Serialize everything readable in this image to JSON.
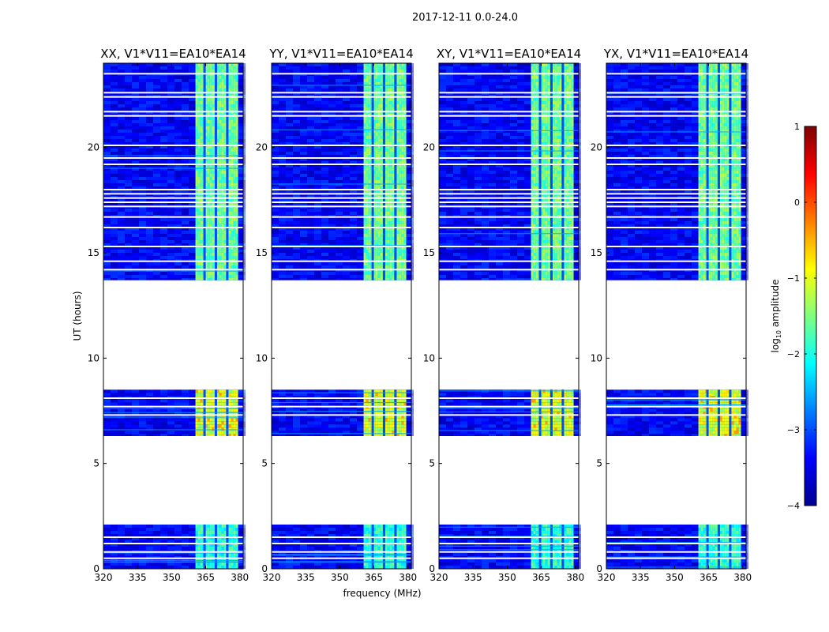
{
  "figure_title": "2017-12-11 0.0-24.0",
  "chart_data": {
    "type": "heatmap",
    "xlabel": "frequency (MHz)",
    "ylabel": "UT (hours)",
    "xlim": [
      320,
      381.5
    ],
    "ylim": [
      0,
      24
    ],
    "xticks": [
      320,
      335,
      350,
      365,
      380
    ],
    "yticks": [
      0,
      5,
      10,
      15,
      20
    ],
    "panels": [
      {
        "title": "XX, V1*V11=EA10*EA14",
        "pol": "XX"
      },
      {
        "title": "YY, V1*V11=EA10*EA14",
        "pol": "YY"
      },
      {
        "title": "XY, V1*V11=EA10*EA14",
        "pol": "XY"
      },
      {
        "title": "YX, V1*V11=EA10*EA14",
        "pol": "YX"
      }
    ],
    "data_segments_ut": [
      [
        0,
        2.1
      ],
      [
        6.3,
        8.5
      ],
      [
        13.7,
        24
      ]
    ],
    "flagged_rows_ut": [
      0.5,
      0.8,
      1.2,
      1.5,
      7.3,
      7.7,
      8.1,
      14.2,
      14.6,
      15.3,
      16.2,
      16.7,
      17.2,
      17.4,
      17.6,
      17.8,
      18.0,
      19.2,
      19.5,
      20.1,
      21.5,
      21.7,
      22.4,
      22.6,
      23.5
    ],
    "signal_band_mhz": [
      360.5,
      379
    ],
    "signal_channel_gaps_mhz": [
      364.5,
      369.5,
      374.5
    ],
    "colorbar": {
      "label": "log",
      "label_sub": "10",
      "label_rest": " amplitude",
      "min": -4,
      "max": 1,
      "ticks": [
        -4,
        -3,
        -2,
        -1,
        0,
        1
      ],
      "colormap": "jet"
    }
  }
}
